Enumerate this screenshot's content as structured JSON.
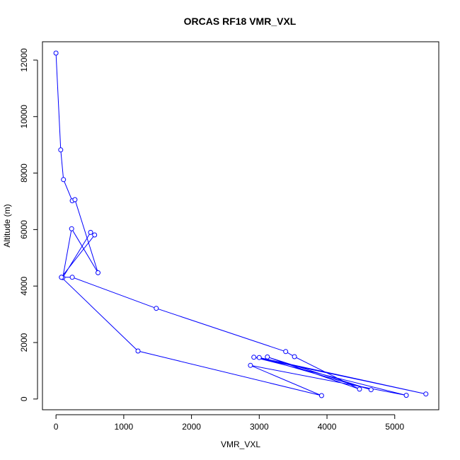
{
  "chart_data": {
    "type": "line",
    "title": "ORCAS RF18 VMR_VXL",
    "xlabel": "VMR_VXL",
    "ylabel": "Altitude (m)",
    "xlim": [
      -200,
      5650
    ],
    "ylim": [
      -380,
      12650
    ],
    "x_ticks": [
      0,
      1000,
      2000,
      3000,
      4000,
      5000
    ],
    "y_ticks": [
      0,
      2000,
      4000,
      6000,
      8000,
      10000,
      12000
    ],
    "grid": false,
    "series_color": "#0000ff",
    "series": [
      {
        "x": [
          0,
          70,
          110,
          240,
          280,
          620,
          230,
          100,
          510,
          570,
          80,
          240,
          1480,
          3390,
          3520,
          4480,
          3120,
          4650,
          3000,
          5460,
          2920,
          5170,
          2870,
          3920,
          1210,
          80
        ],
        "y": [
          12250,
          8820,
          7770,
          7020,
          7060,
          4470,
          6030,
          4300,
          5900,
          5810,
          4310,
          4310,
          3210,
          1680,
          1500,
          350,
          1490,
          330,
          1470,
          180,
          1480,
          130,
          1190,
          120,
          1700,
          4310
        ]
      }
    ]
  }
}
